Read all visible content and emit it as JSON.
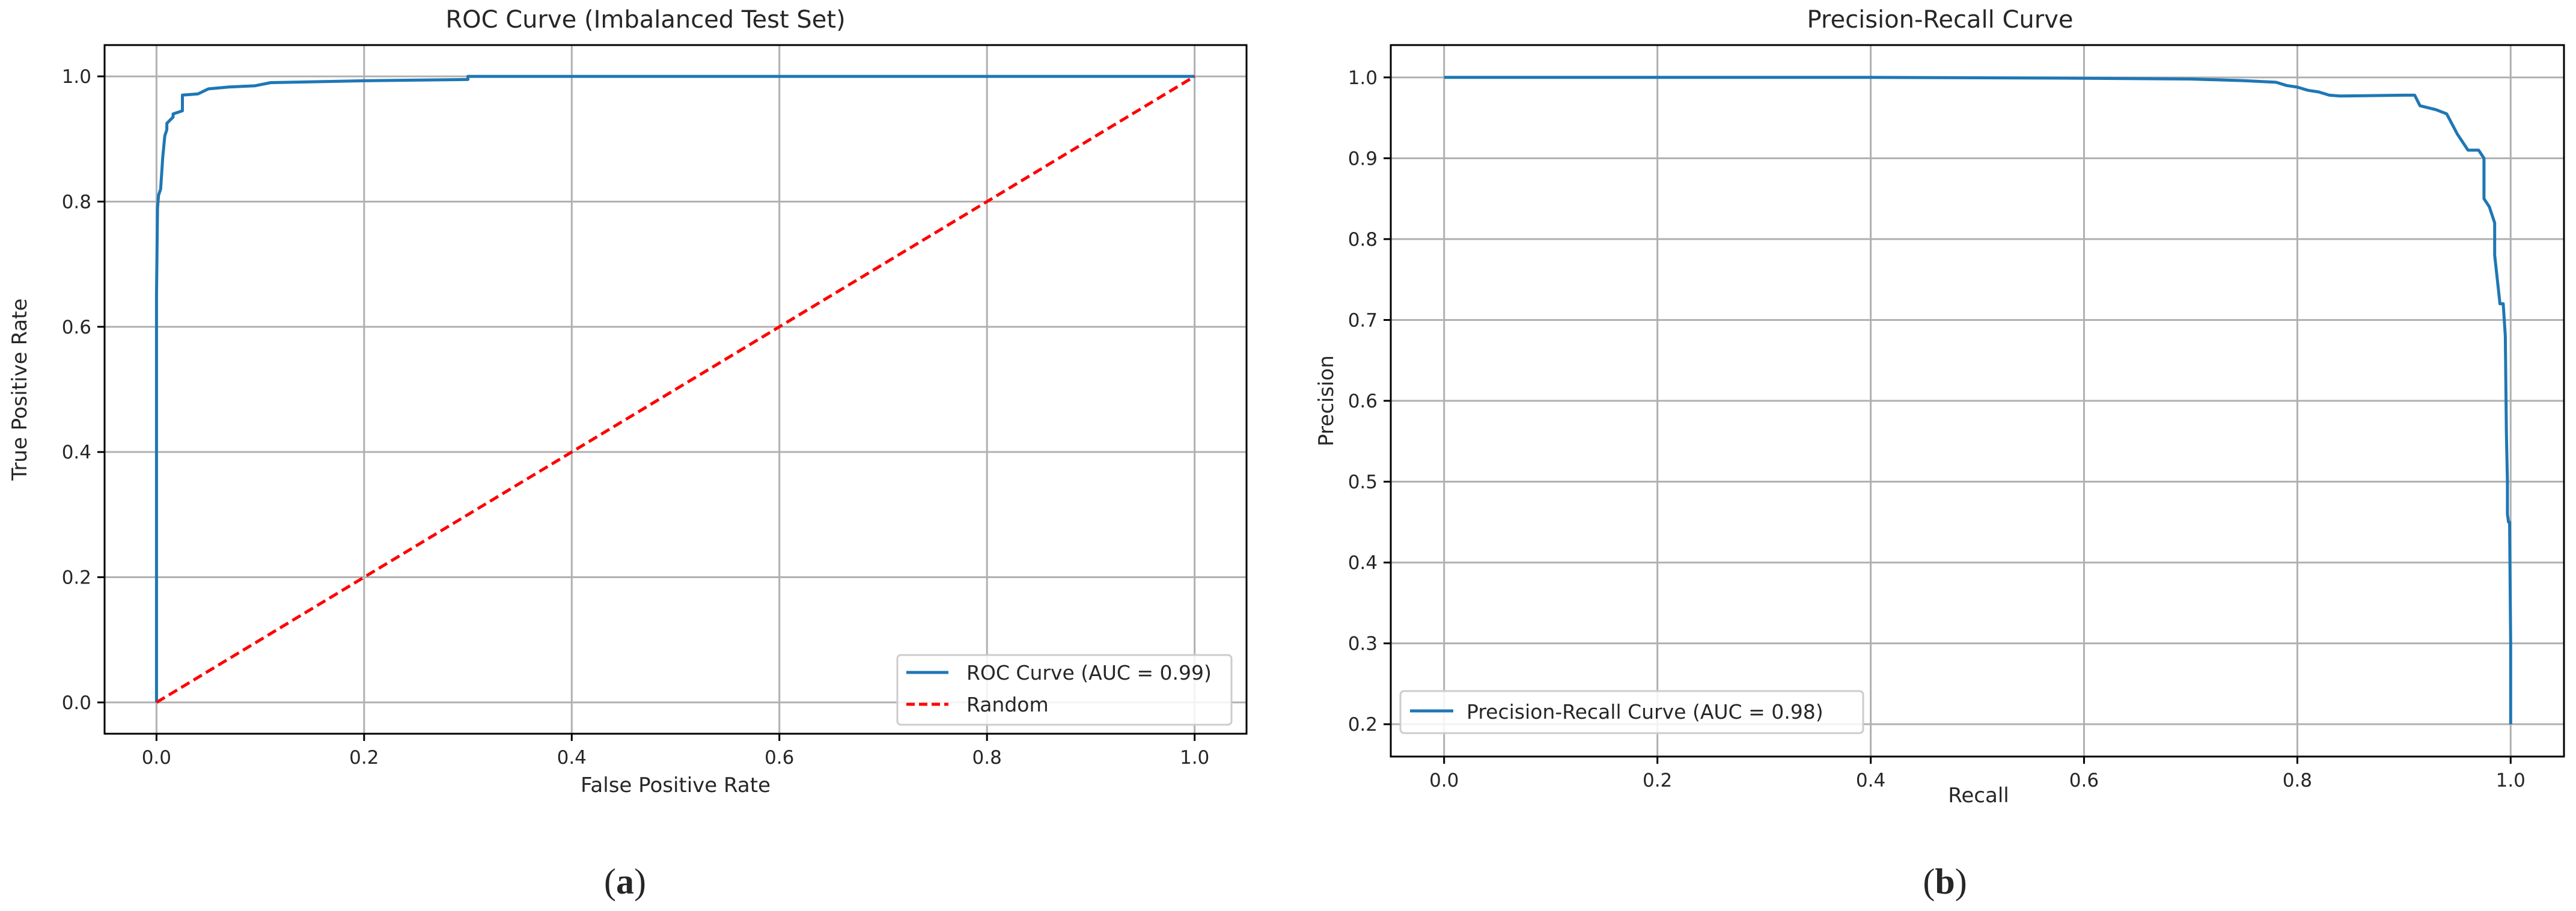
{
  "chart_data": [
    {
      "panel_label": "(a)",
      "panel_letter": "a",
      "type": "line",
      "title": "ROC Curve (Imbalanced Test Set)",
      "xlabel": "False Positive Rate",
      "ylabel": "True Positive Rate",
      "xlim": [
        -0.05,
        1.05
      ],
      "ylim": [
        -0.05,
        1.05
      ],
      "xticks": [
        0.0,
        0.2,
        0.4,
        0.6,
        0.8,
        1.0
      ],
      "yticks": [
        0.0,
        0.2,
        0.4,
        0.6,
        0.8,
        1.0
      ],
      "tick_labels_x": [
        "0.0",
        "0.2",
        "0.4",
        "0.6",
        "0.8",
        "1.0"
      ],
      "tick_labels_y": [
        "0.0",
        "0.2",
        "0.4",
        "0.6",
        "0.8",
        "1.0"
      ],
      "grid": true,
      "legend_position": "lower-right",
      "series": [
        {
          "name": "ROC Curve (AUC = 0.99)",
          "color": "#1f77b4",
          "dash": "solid",
          "x": [
            0,
            0,
            0.001,
            0.002,
            0.003,
            0.004,
            0.006,
            0.008,
            0.01,
            0.01,
            0.016,
            0.016,
            0.025,
            0.025,
            0.04,
            0.05,
            0.07,
            0.095,
            0.11,
            0.2,
            0.3,
            0.3,
            0.5,
            0.7,
            1.0
          ],
          "y": [
            0,
            0.65,
            0.79,
            0.81,
            0.815,
            0.82,
            0.87,
            0.905,
            0.915,
            0.925,
            0.935,
            0.94,
            0.945,
            0.97,
            0.972,
            0.98,
            0.983,
            0.985,
            0.99,
            0.993,
            0.995,
            1.0,
            1.0,
            1.0,
            1.0
          ]
        },
        {
          "name": "Random",
          "color": "#ff0000",
          "dash": "dashed",
          "x": [
            0,
            1
          ],
          "y": [
            0,
            1
          ]
        }
      ]
    },
    {
      "panel_label": "(b)",
      "panel_letter": "b",
      "type": "line",
      "title": "Precision-Recall Curve",
      "xlabel": "Recall",
      "ylabel": "Precision",
      "xlim": [
        -0.05,
        1.05
      ],
      "ylim": [
        0.16,
        1.04
      ],
      "xticks": [
        0.0,
        0.2,
        0.4,
        0.6,
        0.8,
        1.0
      ],
      "yticks": [
        0.2,
        0.3,
        0.4,
        0.5,
        0.6,
        0.7,
        0.8,
        0.9,
        1.0
      ],
      "tick_labels_x": [
        "0.0",
        "0.2",
        "0.4",
        "0.6",
        "0.8",
        "1.0"
      ],
      "tick_labels_y": [
        "0.2",
        "0.3",
        "0.4",
        "0.5",
        "0.6",
        "0.7",
        "0.8",
        "0.9",
        "1.0"
      ],
      "grid": true,
      "legend_position": "lower-left",
      "series": [
        {
          "name": "Precision-Recall Curve (AUC = 0.98)",
          "color": "#1f77b4",
          "dash": "solid",
          "x": [
            0.0,
            0.4,
            0.6,
            0.7,
            0.75,
            0.78,
            0.79,
            0.8,
            0.81,
            0.82,
            0.83,
            0.84,
            0.9,
            0.91,
            0.915,
            0.93,
            0.94,
            0.95,
            0.96,
            0.97,
            0.975,
            0.975,
            0.98,
            0.985,
            0.985,
            0.99,
            0.993,
            0.995,
            0.996,
            0.997,
            0.997,
            0.998,
            0.999,
            1.0,
            1.0
          ],
          "y": [
            1.0,
            1.0,
            0.999,
            0.998,
            0.996,
            0.994,
            0.99,
            0.988,
            0.984,
            0.982,
            0.978,
            0.977,
            0.978,
            0.978,
            0.965,
            0.96,
            0.955,
            0.93,
            0.91,
            0.91,
            0.9,
            0.85,
            0.84,
            0.82,
            0.78,
            0.72,
            0.72,
            0.68,
            0.56,
            0.5,
            0.46,
            0.45,
            0.45,
            0.3,
            0.2
          ]
        }
      ]
    }
  ]
}
